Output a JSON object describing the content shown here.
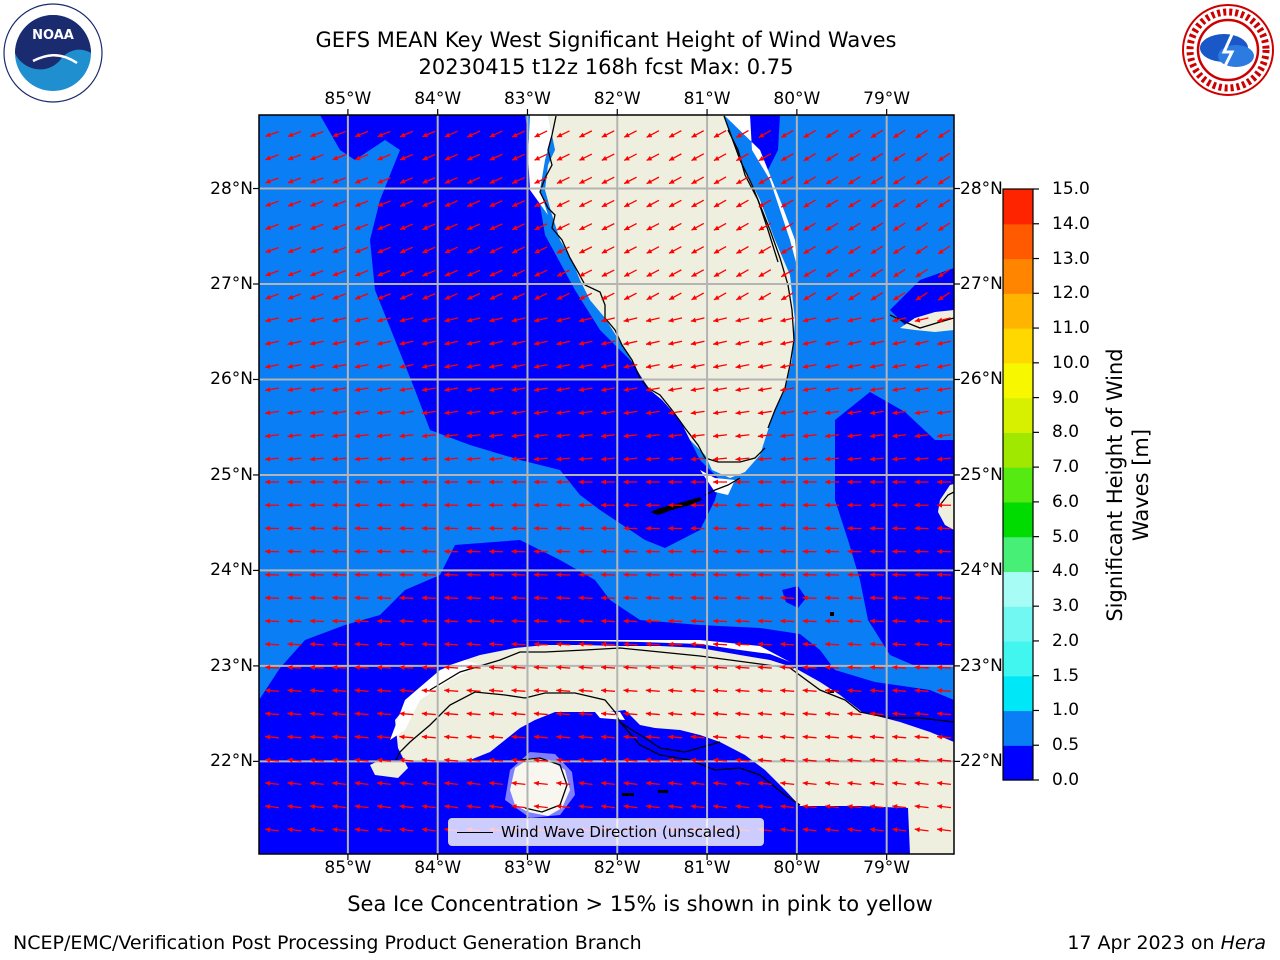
{
  "title": {
    "line1": "GEFS MEAN Key West Significant Height of Wind Waves",
    "line2": "20230415 t12z 168h fcst   Max: 0.75"
  },
  "logos": {
    "left": "noaa-logo",
    "right": "nws-logo"
  },
  "map": {
    "lon_ticks": [
      "85°W",
      "84°W",
      "83°W",
      "82°W",
      "81°W",
      "80°W",
      "79°W"
    ],
    "lat_ticks": [
      "28°N",
      "27°N",
      "26°N",
      "25°N",
      "24°N",
      "23°N",
      "22°N"
    ],
    "lon_values": [
      -85,
      -84,
      -83,
      -82,
      -81,
      -80,
      -79
    ],
    "lat_values": [
      28,
      27,
      26,
      25,
      24,
      23,
      22
    ],
    "extent": {
      "lon_min": -85.99,
      "lon_max": -78.25,
      "lat_min": 21.03,
      "lat_max": 28.77
    },
    "colors": {
      "wave_0_0_5": "#0000ff",
      "wave_0_5_1_0": "#0a7ef5",
      "land": "#efefdf",
      "grid": "#b4b4b4",
      "arrow": "#ff0000"
    }
  },
  "colorbar": {
    "label_line1": "Significant Height of Wind",
    "label_line2": "Waves [m]",
    "ticks": [
      "0.0",
      "0.5",
      "1.0",
      "1.5",
      "2.0",
      "3.0",
      "4.0",
      "5.0",
      "6.0",
      "7.0",
      "8.0",
      "9.0",
      "10.0",
      "11.0",
      "12.0",
      "13.0",
      "14.0",
      "15.0"
    ],
    "colors": [
      "#0000ff",
      "#0a7ef5",
      "#00e8f8",
      "#42f6f0",
      "#72f8f2",
      "#a8fcf6",
      "#47ef77",
      "#00dc00",
      "#55ea12",
      "#a0e800",
      "#d7f000",
      "#f7f700",
      "#ffd800",
      "#ffb400",
      "#ff8500",
      "#ff5a00",
      "#ff2400",
      "#ff0000"
    ]
  },
  "legend": {
    "label": "Wind Wave Direction (unscaled)"
  },
  "subtitle": "Sea Ice Concentration > 15% is shown in pink to yellow",
  "footer": {
    "left": "NCEP/EMC/Verification Post Processing Product Generation Branch",
    "right_date": "17 Apr 2023 on ",
    "right_host": "Hera"
  }
}
